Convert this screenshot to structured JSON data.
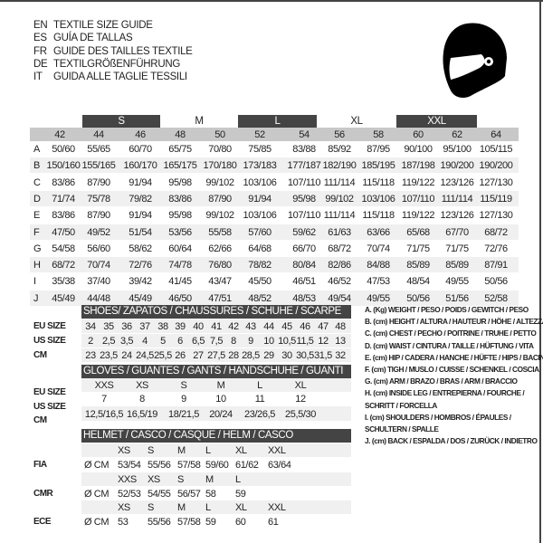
{
  "titles": [
    {
      "code": "EN",
      "text": "TEXTILE SIZE GUIDE"
    },
    {
      "code": "ES",
      "text": "GUÍA DE TALLAS"
    },
    {
      "code": "FR",
      "text": "GUIDE DES TAILLES TEXTILE"
    },
    {
      "code": "DE",
      "text": "TEXTILGRÖßENFÜHRUNG"
    },
    {
      "code": "IT",
      "text": "GUIDA ALLE TAGLIE TESSILI"
    }
  ],
  "icon": "helmet-icon",
  "colors": {
    "header_dark": "#444444",
    "header_gray": "#c8c8c8",
    "stripe": "#f0f0f0"
  },
  "textile": {
    "size_groups": [
      "S",
      "M",
      "L",
      "XL",
      "XXL"
    ],
    "sizes": [
      "42",
      "44",
      "46",
      "48",
      "50",
      "52",
      "54",
      "56",
      "58",
      "60",
      "62",
      "64"
    ],
    "rows": [
      {
        "label": "A",
        "values": [
          "50/60",
          "55/65",
          "60/70",
          "65/75",
          "70/80",
          "75/85",
          "83/88",
          "85/92",
          "87/95",
          "90/100",
          "95/100",
          "105/115"
        ]
      },
      {
        "label": "B",
        "values": [
          "150/160",
          "155/165",
          "160/170",
          "165/175",
          "170/180",
          "173/183",
          "177/187",
          "182/190",
          "185/195",
          "187/198",
          "190/200",
          "190/200"
        ]
      },
      {
        "label": "C",
        "values": [
          "83/86",
          "87/90",
          "91/94",
          "95/98",
          "99/102",
          "103/106",
          "107/110",
          "111/114",
          "115/118",
          "119/122",
          "123/126",
          "127/130"
        ]
      },
      {
        "label": "D",
        "values": [
          "71/74",
          "75/78",
          "79/82",
          "83/86",
          "87/90",
          "91/94",
          "95/98",
          "99/102",
          "103/106",
          "107/110",
          "111/114",
          "115/119"
        ]
      },
      {
        "label": "E",
        "values": [
          "83/86",
          "87/90",
          "91/94",
          "95/98",
          "99/102",
          "103/106",
          "107/110",
          "111/114",
          "115/118",
          "119/122",
          "123/126",
          "127/130"
        ]
      },
      {
        "label": "F",
        "values": [
          "47/50",
          "49/52",
          "51/54",
          "53/56",
          "55/58",
          "57/60",
          "59/62",
          "61/63",
          "63/66",
          "65/68",
          "67/70",
          "68/72"
        ]
      },
      {
        "label": "G",
        "values": [
          "54/58",
          "56/60",
          "58/62",
          "60/64",
          "62/66",
          "64/68",
          "66/70",
          "68/72",
          "70/74",
          "71/75",
          "71/75",
          "72/76"
        ]
      },
      {
        "label": "H",
        "values": [
          "68/72",
          "70/74",
          "72/76",
          "74/78",
          "76/80",
          "78/82",
          "80/84",
          "82/86",
          "84/88",
          "85/89",
          "85/89",
          "87/91"
        ]
      },
      {
        "label": "I",
        "values": [
          "35/38",
          "37/40",
          "39/42",
          "41/45",
          "43/47",
          "45/50",
          "46/51",
          "46/52",
          "47/53",
          "48/54",
          "49/55",
          "50/56"
        ]
      },
      {
        "label": "J",
        "values": [
          "45/49",
          "44/48",
          "45/49",
          "46/50",
          "47/51",
          "48/52",
          "48/53",
          "49/54",
          "49/55",
          "50/56",
          "51/56",
          "52/58"
        ]
      }
    ]
  },
  "shoes": {
    "title": "SHOES/ ZAPATOS / CHAUSSURES / SCHUHE / SCARPE",
    "rows": [
      {
        "label": "EU SIZE",
        "values": [
          "34",
          "35",
          "36",
          "37",
          "38",
          "39",
          "40",
          "41",
          "42",
          "43",
          "44",
          "45",
          "46",
          "47",
          "48"
        ]
      },
      {
        "label": "US SIZE",
        "values": [
          "2",
          "2,5",
          "3,5",
          "4",
          "5",
          "6",
          "6,5",
          "7,5",
          "8",
          "9",
          "10",
          "10,5",
          "11,5",
          "12",
          "13"
        ]
      },
      {
        "label": "CM",
        "values": [
          "23",
          "23,5",
          "24",
          "24,5",
          "25,5",
          "26",
          "27",
          "27,5",
          "28",
          "28,5",
          "29",
          "30",
          "30,5",
          "31,5",
          "32"
        ]
      }
    ]
  },
  "gloves": {
    "title": "GLOVES / GUANTES / GANTS / HANDSCHUHE / GUANTI",
    "rows": [
      {
        "label": "EU SIZE",
        "values": [
          "XXS",
          "XS",
          "S",
          "M",
          "L",
          "XL"
        ]
      },
      {
        "label": "US SIZE",
        "values": [
          "7",
          "8",
          "9",
          "10",
          "11",
          "12"
        ]
      },
      {
        "label": "CM",
        "values": [
          "12,5/16,5",
          "16,5/19",
          "18/21,5",
          "20/24",
          "23/26,5",
          "25,5/30"
        ]
      }
    ]
  },
  "helmet": {
    "title": "HELMET / CASCO / CASQUE / HELM / CASCO",
    "blocks": [
      {
        "label": "FIA",
        "unit": "Ø CM",
        "sizes": [
          "XS",
          "S",
          "M",
          "L",
          "XL",
          "XXL"
        ],
        "values": [
          "53/54",
          "55/56",
          "57/58",
          "59/60",
          "61/62",
          "63/64"
        ]
      },
      {
        "label": "CMR",
        "unit": "Ø CM",
        "sizes": [
          "XXS",
          "XS",
          "S",
          "M",
          "L"
        ],
        "values": [
          "52/53",
          "54/55",
          "56/57",
          "58",
          "59"
        ]
      },
      {
        "label": "ECE",
        "unit": "Ø CM",
        "sizes": [
          "XS",
          "S",
          "M",
          "L",
          "XL",
          "XXL"
        ],
        "values": [
          "53",
          "55/56",
          "57/58",
          "59",
          "60",
          "61"
        ]
      }
    ]
  },
  "legend": [
    "A. (Kg) WEIGHT / PESO / POIDS / GEWITCH / PESO",
    "B. (cm) HEIGHT / ALTURA / HAUTEUR / HÖHE / ALTEZZA",
    "C. (cm) CHEST / PECHO / POITRINE / TRUHE / PETTO",
    "D. (cm) WAIST / CINTURA / TAILLE / HÜFTUNG / VITA",
    "E. (cm) HIP / CADERA / HANCHE / HÜFTE / HIPS /  BACINO",
    "F.  (cm) TIGH / MUSLO / CUISSE / SCHENKEL / COSCIA",
    "G. (cm) ARM  / BRAZO / BRAS / ARM / BRACCIO",
    "H. (cm) INSIDE LEG / ENTREPIERNA / FOURCHE /",
    "SCHRITT / FORCELLA",
    "I.  (cm) SHOULDERS / HOMBROS / ÉPAULES /",
    "SCHULTERN / SPALLE",
    "J. (cm) BACK / ESPALDA / DOS / ZURÜCK / INDIETRO"
  ]
}
